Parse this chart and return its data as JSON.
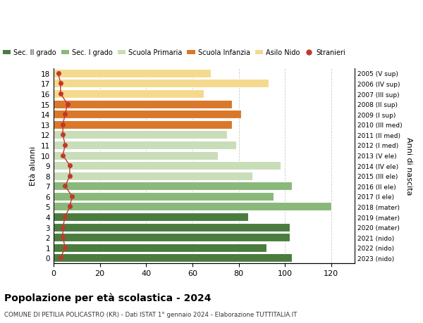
{
  "ages": [
    18,
    17,
    16,
    15,
    14,
    13,
    12,
    11,
    10,
    9,
    8,
    7,
    6,
    5,
    4,
    3,
    2,
    1,
    0
  ],
  "right_labels": [
    "2005 (V sup)",
    "2006 (IV sup)",
    "2007 (III sup)",
    "2008 (II sup)",
    "2009 (I sup)",
    "2010 (III med)",
    "2011 (II med)",
    "2012 (I med)",
    "2013 (V ele)",
    "2014 (IV ele)",
    "2015 (III ele)",
    "2016 (II ele)",
    "2017 (I ele)",
    "2018 (mater)",
    "2019 (mater)",
    "2020 (mater)",
    "2021 (nido)",
    "2022 (nido)",
    "2023 (nido)"
  ],
  "bar_values": [
    103,
    92,
    102,
    102,
    84,
    120,
    95,
    103,
    86,
    98,
    71,
    79,
    75,
    77,
    81,
    77,
    65,
    93,
    68
  ],
  "bar_colors": [
    "#4a7c3f",
    "#4a7c3f",
    "#4a7c3f",
    "#4a7c3f",
    "#4a7c3f",
    "#8ab87a",
    "#8ab87a",
    "#8ab87a",
    "#c8ddb8",
    "#c8ddb8",
    "#c8ddb8",
    "#c8ddb8",
    "#c8ddb8",
    "#d9782a",
    "#d9782a",
    "#d9782a",
    "#f5d98e",
    "#f5d98e",
    "#f5d98e"
  ],
  "stranieri": [
    3,
    5,
    4,
    4,
    5,
    7,
    8,
    5,
    7,
    7,
    4,
    5,
    4,
    4,
    5,
    6,
    3,
    3,
    2
  ],
  "stranieri_color": "#c0392b",
  "legend_labels": [
    "Sec. II grado",
    "Sec. I grado",
    "Scuola Primaria",
    "Scuola Infanzia",
    "Asilo Nido",
    "Stranieri"
  ],
  "legend_colors": [
    "#4a7c3f",
    "#8ab87a",
    "#c8ddb8",
    "#d9782a",
    "#f5d98e",
    "#c0392b"
  ],
  "title": "Popolazione per età scolastica - 2024",
  "subtitle": "COMUNE DI PETILIA POLICASTRO (KR) - Dati ISTAT 1° gennaio 2024 - Elaborazione TUTTITALIA.IT",
  "ylabel": "Età alunni",
  "right_ylabel": "Anni di nascita",
  "xlim": [
    0,
    130
  ],
  "xticks": [
    0,
    20,
    40,
    60,
    80,
    100,
    120
  ],
  "bg_color": "#ffffff",
  "grid_color": "#cccccc"
}
